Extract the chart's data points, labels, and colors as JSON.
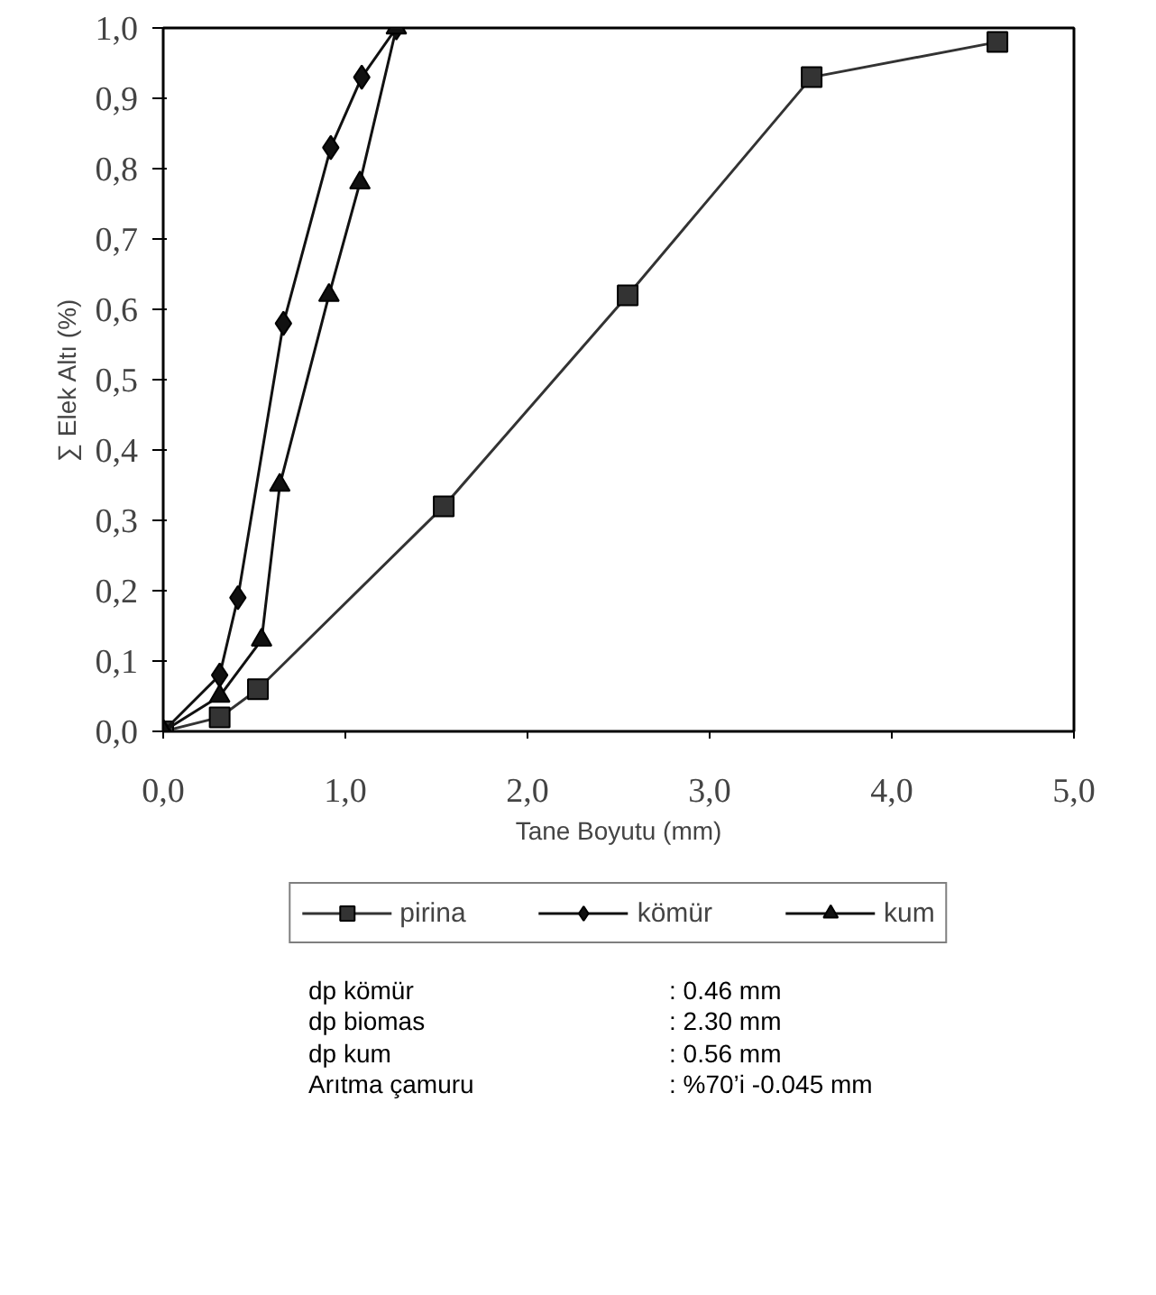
{
  "chart_data": {
    "type": "line",
    "xlabel": "Tane Boyutu (mm)",
    "ylabel": "∑ Elek Altı (%)",
    "series": [
      {
        "name": "pirina",
        "color": "#333333",
        "marker": "square",
        "x": [
          0,
          0.31,
          0.52,
          1.54,
          2.55,
          3.56,
          4.58
        ],
        "values": [
          0,
          0.02,
          0.06,
          0.32,
          0.62,
          0.93,
          0.98
        ]
      },
      {
        "name": "kömür",
        "color": "#111111",
        "marker": "diamond",
        "x": [
          0,
          0.31,
          0.41,
          0.66,
          0.92,
          1.09,
          1.28
        ],
        "values": [
          0,
          0.08,
          0.19,
          0.58,
          0.83,
          0.93,
          1.0
        ]
      },
      {
        "name": "kum",
        "color": "#111111",
        "marker": "triangle",
        "x": [
          0,
          0.31,
          0.54,
          0.64,
          0.91,
          1.08,
          1.28
        ],
        "values": [
          0,
          0.05,
          0.13,
          0.35,
          0.62,
          0.78,
          1.0
        ]
      }
    ],
    "xlim": [
      0,
      5
    ],
    "ylim": [
      0,
      1
    ],
    "xticks": [
      {
        "value": 0,
        "label": "0,0"
      },
      {
        "value": 1,
        "label": "1,0"
      },
      {
        "value": 2,
        "label": "2,0"
      },
      {
        "value": 3,
        "label": "3,0"
      },
      {
        "value": 4,
        "label": "4,0"
      },
      {
        "value": 5,
        "label": "5,0"
      }
    ],
    "yticks": [
      {
        "value": 0,
        "label": "0,0"
      },
      {
        "value": 0.1,
        "label": "0,1"
      },
      {
        "value": 0.2,
        "label": "0,2"
      },
      {
        "value": 0.3,
        "label": "0,3"
      },
      {
        "value": 0.4,
        "label": "0,4"
      },
      {
        "value": 0.5,
        "label": "0,5"
      },
      {
        "value": 0.6,
        "label": "0,6"
      },
      {
        "value": 0.7,
        "label": "0,7"
      },
      {
        "value": 0.8,
        "label": "0,8"
      },
      {
        "value": 0.9,
        "label": "0,9"
      },
      {
        "value": 1,
        "label": "1,0"
      }
    ],
    "grid": false,
    "legend": "bottom",
    "line_style": "solid",
    "annotations": [
      "dp kömür : 0.46 mm",
      "dp biomas : 2.30 mm",
      "dp kum : 0.56 mm",
      "Arıtma çamuru : %70’i -0.045 mm"
    ]
  }
}
